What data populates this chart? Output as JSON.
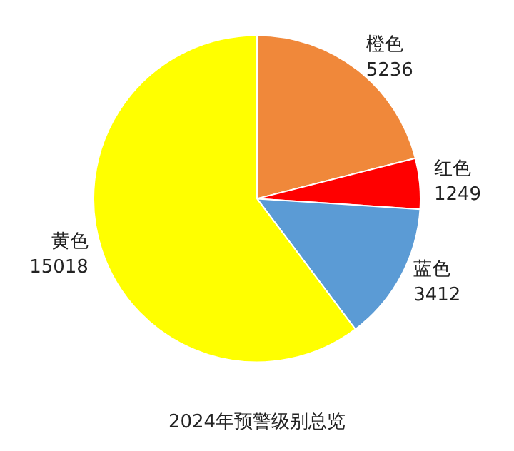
{
  "chart_data": {
    "type": "pie",
    "title": "2024年预警级别总览",
    "categories": [
      "橙色",
      "红色",
      "蓝色",
      "黄色"
    ],
    "values": [
      5236,
      1249,
      3412,
      15018
    ],
    "colors": [
      "#f0883a",
      "#ff0000",
      "#5b9bd5",
      "#ffff00"
    ],
    "data_labels": true,
    "legend": false
  }
}
